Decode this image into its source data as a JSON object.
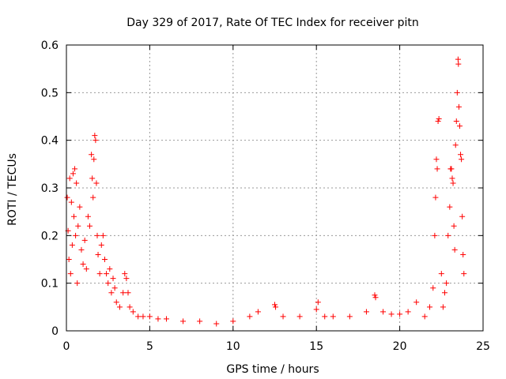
{
  "chart_data": {
    "type": "scatter",
    "title": "Day 329 of 2017, Rate Of TEC Index for receiver pitn",
    "xlabel": "GPS time / hours",
    "ylabel": "ROTI / TECUs",
    "xlim": [
      0,
      25
    ],
    "ylim": [
      0,
      0.6
    ],
    "x_ticks": [
      0,
      5,
      10,
      15,
      20,
      25
    ],
    "x_tick_labels": [
      "0",
      "5",
      "10",
      "15",
      "20",
      "25"
    ],
    "y_ticks": [
      0,
      0.1,
      0.2,
      0.3,
      0.4,
      0.5,
      0.6
    ],
    "y_tick_labels": [
      "0",
      "0.1",
      "0.2",
      "0.3",
      "0.4",
      "0.5",
      "0.6"
    ],
    "grid": true,
    "marker": "+",
    "color": "#ff0000",
    "series": [
      {
        "name": "ROTI",
        "points": [
          [
            0.05,
            0.28
          ],
          [
            0.1,
            0.21
          ],
          [
            0.15,
            0.15
          ],
          [
            0.2,
            0.32
          ],
          [
            0.25,
            0.12
          ],
          [
            0.3,
            0.27
          ],
          [
            0.35,
            0.18
          ],
          [
            0.4,
            0.33
          ],
          [
            0.45,
            0.24
          ],
          [
            0.5,
            0.34
          ],
          [
            0.55,
            0.2
          ],
          [
            0.6,
            0.31
          ],
          [
            0.65,
            0.1
          ],
          [
            0.7,
            0.22
          ],
          [
            0.8,
            0.26
          ],
          [
            0.9,
            0.17
          ],
          [
            1.0,
            0.14
          ],
          [
            1.1,
            0.19
          ],
          [
            1.2,
            0.13
          ],
          [
            1.3,
            0.24
          ],
          [
            1.4,
            0.22
          ],
          [
            1.5,
            0.37
          ],
          [
            1.55,
            0.32
          ],
          [
            1.6,
            0.28
          ],
          [
            1.65,
            0.36
          ],
          [
            1.7,
            0.41
          ],
          [
            1.75,
            0.4
          ],
          [
            1.8,
            0.31
          ],
          [
            1.85,
            0.2
          ],
          [
            1.9,
            0.16
          ],
          [
            2.0,
            0.12
          ],
          [
            2.1,
            0.18
          ],
          [
            2.2,
            0.2
          ],
          [
            2.3,
            0.15
          ],
          [
            2.4,
            0.12
          ],
          [
            2.5,
            0.1
          ],
          [
            2.6,
            0.13
          ],
          [
            2.7,
            0.08
          ],
          [
            2.8,
            0.11
          ],
          [
            2.9,
            0.09
          ],
          [
            3.0,
            0.06
          ],
          [
            3.2,
            0.05
          ],
          [
            3.4,
            0.08
          ],
          [
            3.5,
            0.12
          ],
          [
            3.6,
            0.11
          ],
          [
            3.7,
            0.08
          ],
          [
            3.8,
            0.05
          ],
          [
            4.0,
            0.04
          ],
          [
            4.3,
            0.03
          ],
          [
            4.6,
            0.03
          ],
          [
            5.0,
            0.03
          ],
          [
            5.5,
            0.025
          ],
          [
            6.0,
            0.025
          ],
          [
            7.0,
            0.02
          ],
          [
            8.0,
            0.02
          ],
          [
            9.0,
            0.015
          ],
          [
            10.0,
            0.02
          ],
          [
            11.0,
            0.03
          ],
          [
            11.5,
            0.04
          ],
          [
            12.5,
            0.055
          ],
          [
            12.55,
            0.05
          ],
          [
            13.0,
            0.03
          ],
          [
            14.0,
            0.03
          ],
          [
            15.0,
            0.045
          ],
          [
            15.1,
            0.06
          ],
          [
            15.5,
            0.03
          ],
          [
            16.0,
            0.03
          ],
          [
            17.0,
            0.03
          ],
          [
            18.0,
            0.04
          ],
          [
            18.5,
            0.075
          ],
          [
            18.55,
            0.07
          ],
          [
            19.0,
            0.04
          ],
          [
            19.5,
            0.035
          ],
          [
            20.0,
            0.035
          ],
          [
            20.5,
            0.04
          ],
          [
            21.0,
            0.06
          ],
          [
            21.5,
            0.03
          ],
          [
            21.8,
            0.05
          ],
          [
            22.0,
            0.09
          ],
          [
            22.1,
            0.2
          ],
          [
            22.15,
            0.28
          ],
          [
            22.2,
            0.36
          ],
          [
            22.25,
            0.34
          ],
          [
            22.3,
            0.44
          ],
          [
            22.35,
            0.445
          ],
          [
            22.5,
            0.12
          ],
          [
            22.6,
            0.05
          ],
          [
            22.7,
            0.08
          ],
          [
            22.8,
            0.1
          ],
          [
            22.9,
            0.2
          ],
          [
            23.0,
            0.26
          ],
          [
            23.05,
            0.34
          ],
          [
            23.1,
            0.34
          ],
          [
            23.15,
            0.32
          ],
          [
            23.2,
            0.31
          ],
          [
            23.25,
            0.22
          ],
          [
            23.3,
            0.17
          ],
          [
            23.35,
            0.39
          ],
          [
            23.4,
            0.44
          ],
          [
            23.45,
            0.5
          ],
          [
            23.5,
            0.57
          ],
          [
            23.52,
            0.56
          ],
          [
            23.55,
            0.47
          ],
          [
            23.6,
            0.43
          ],
          [
            23.65,
            0.37
          ],
          [
            23.7,
            0.36
          ],
          [
            23.75,
            0.24
          ],
          [
            23.8,
            0.16
          ],
          [
            23.85,
            0.12
          ]
        ]
      }
    ]
  }
}
